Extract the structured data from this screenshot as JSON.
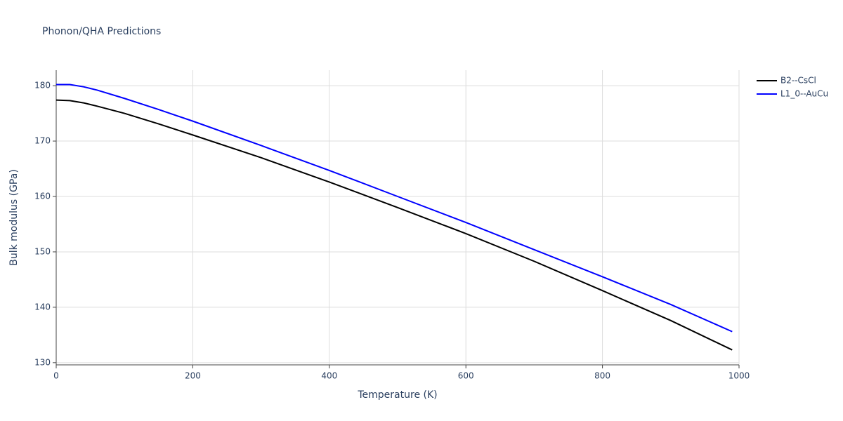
{
  "chart_data": {
    "type": "line",
    "title": "Phonon/QHA Predictions",
    "x_label": "Temperature (K)",
    "y_label": "Bulk modulus (GPa)",
    "x": [
      0,
      20,
      40,
      60,
      100,
      150,
      200,
      300,
      400,
      500,
      600,
      700,
      800,
      900,
      990
    ],
    "series": [
      {
        "name": "B2--CsCl",
        "color": "#000000",
        "values": [
          177.4,
          177.3,
          176.9,
          176.3,
          175.0,
          173.1,
          171.1,
          167.0,
          162.6,
          158.0,
          153.3,
          148.3,
          143.0,
          137.6,
          132.3
        ]
      },
      {
        "name": "L1_0--AuCu",
        "color": "#0000ff",
        "values": [
          180.2,
          180.2,
          179.8,
          179.2,
          177.7,
          175.7,
          173.6,
          169.2,
          164.7,
          160.0,
          155.3,
          150.4,
          145.5,
          140.5,
          135.6
        ]
      }
    ],
    "xlim": [
      0,
      1000
    ],
    "xticks": [
      0,
      200,
      400,
      600,
      800,
      1000
    ],
    "ylim": [
      129.6,
      182.8
    ],
    "yticks": [
      130,
      140,
      150,
      160,
      170,
      180
    ],
    "grid": true,
    "legend": "top-right"
  }
}
